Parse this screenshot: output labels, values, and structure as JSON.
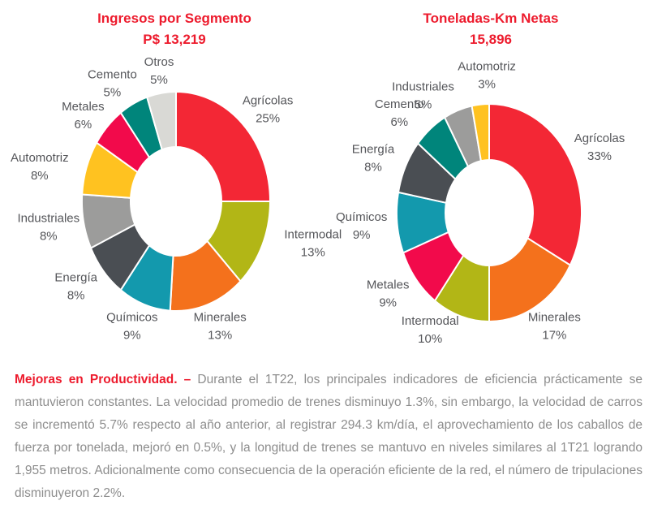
{
  "chart_data": [
    {
      "type": "pie",
      "donut": true,
      "title": "Ingresos por Segmento",
      "subtitle": "P$ 13,219",
      "labels": [
        "Agrícolas",
        "Intermodal",
        "Minerales",
        "Químicos",
        "Energía",
        "Industriales",
        "Automotriz",
        "Metales",
        "Cemento",
        "Otros"
      ],
      "values": [
        25,
        13,
        13,
        9,
        8,
        8,
        8,
        6,
        5,
        5
      ],
      "colors": [
        "#F32735",
        "#B2B616",
        "#F4711C",
        "#1399AD",
        "#4A4E53",
        "#9C9C9B",
        "#FFC220",
        "#F20A4B",
        "#00857B",
        "#D9D9D5"
      ],
      "legend_position": "outside-labels",
      "start_angle_deg": -90,
      "direction": "clockwise"
    },
    {
      "type": "pie",
      "donut": true,
      "title": "Toneladas-Km Netas",
      "subtitle": "15,896",
      "labels": [
        "Agrícolas",
        "Minerales",
        "Intermodal",
        "Metales",
        "Químicos",
        "Energía",
        "Cemento",
        "Industriales",
        "Automotriz"
      ],
      "values": [
        33,
        17,
        10,
        9,
        9,
        8,
        6,
        5,
        3
      ],
      "colors": [
        "#F32735",
        "#F4711C",
        "#B2B616",
        "#F20A4B",
        "#1399AD",
        "#4A4E53",
        "#00857B",
        "#9C9C9B",
        "#FFC220"
      ],
      "legend_position": "outside-labels",
      "start_angle_deg": -90,
      "direction": "clockwise"
    }
  ],
  "colors": {
    "title_red": "#ED1B2D",
    "label_gray": "#55565A",
    "paragraph_gray": "#8D8D8D"
  },
  "paragraph": {
    "lead": "Mejoras en Productividad. –",
    "body": "Durante el 1T22, los principales indicadores de eficiencia prácticamente se mantuvieron constantes. La velocidad promedio de trenes disminuyo 1.3%, sin embargo, la velocidad de carros se incrementó 5.7% respecto al año anterior, al registrar 294.3 km/día, el aprovechamiento de los caballos de fuerza por tonelada, mejoró en 0.5%, y la longitud de trenes se mantuvo en niveles similares al 1T21 logrando 1,955 metros. Adicionalmente como consecuencia de la operación eficiente de la red, el número de tripulaciones disminuyeron 2.2%."
  }
}
